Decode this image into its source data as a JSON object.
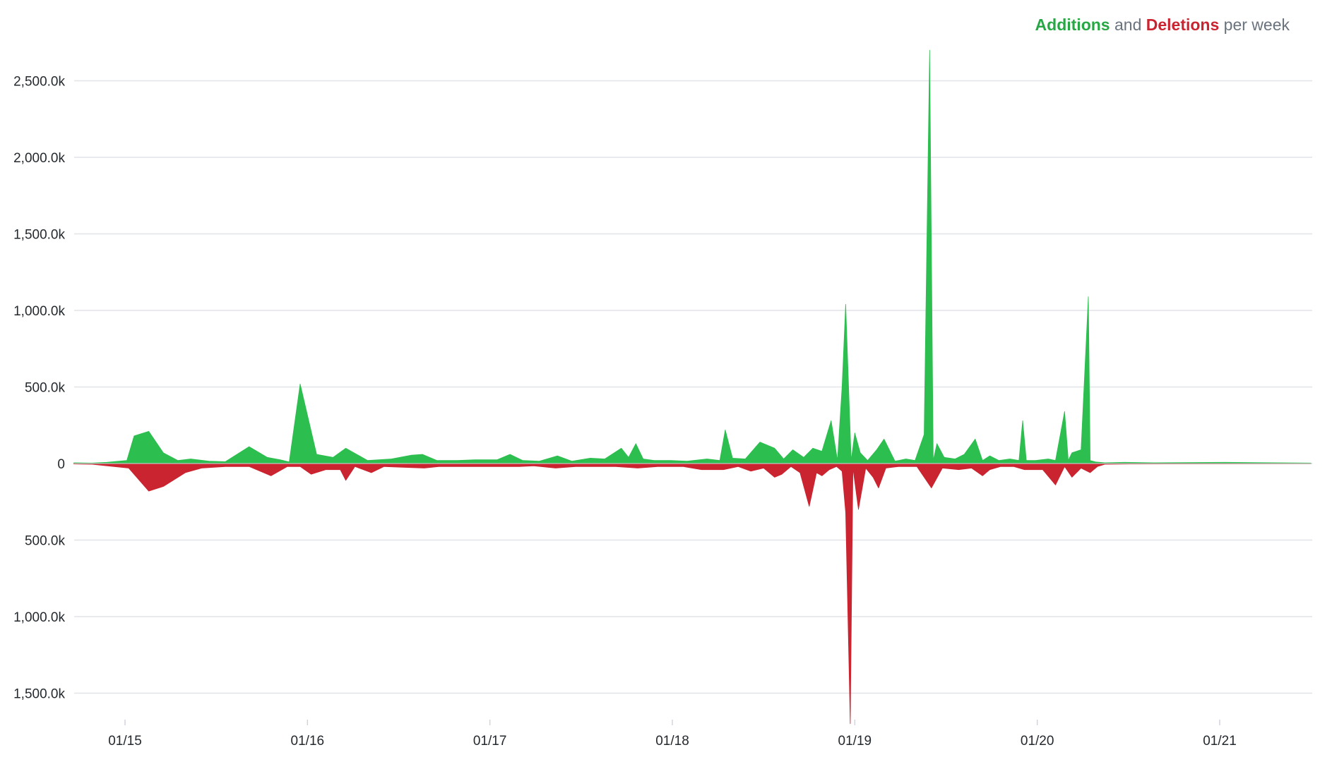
{
  "legend": {
    "additions": "Additions",
    "and": "and",
    "deletions": "Deletions",
    "suffix": "per week"
  },
  "colors": {
    "additions": "#2cbe4e",
    "deletions": "#cb2431",
    "grid": "#e1e4e8",
    "text": "#24292e"
  },
  "chart_data": {
    "type": "area",
    "title": "",
    "xlabel": "",
    "ylabel": "",
    "ylim": [
      -1700,
      2700
    ],
    "y_unit_label_suffix": "k",
    "y_ticks": [
      2500,
      2000,
      1500,
      1000,
      500,
      0,
      -500,
      -1000,
      -1500
    ],
    "y_tick_labels": [
      "2,500.0k",
      "2,000.0k",
      "1,500.0k",
      "1,000.0k",
      "500.0k",
      "0",
      "500.0k",
      "1,000.0k",
      "1,500.0k"
    ],
    "x_ticks": [
      "01/15",
      "01/16",
      "01/17",
      "01/18",
      "01/19",
      "01/20",
      "01/21"
    ],
    "grid": true,
    "legend_position": "top-right",
    "series": [
      {
        "name": "Additions",
        "x": [
          14.72,
          14.82,
          14.9,
          15.01,
          15.05,
          15.13,
          15.21,
          15.29,
          15.36,
          15.46,
          15.55,
          15.68,
          15.78,
          15.85,
          15.9,
          15.96,
          16.05,
          16.14,
          16.21,
          16.33,
          16.46,
          16.57,
          16.63,
          16.71,
          16.82,
          16.92,
          17.04,
          17.11,
          17.18,
          17.27,
          17.37,
          17.45,
          17.55,
          17.63,
          17.72,
          17.76,
          17.8,
          17.84,
          17.9,
          17.99,
          18.08,
          18.19,
          18.26,
          18.29,
          18.33,
          18.4,
          18.48,
          18.56,
          18.61,
          18.66,
          18.72,
          18.77,
          18.82,
          18.87,
          18.905,
          18.93,
          18.95,
          18.98,
          19.0,
          19.03,
          19.07,
          19.12,
          19.16,
          19.22,
          19.28,
          19.33,
          19.38,
          19.41,
          19.43,
          19.45,
          19.49,
          19.55,
          19.6,
          19.66,
          19.7,
          19.74,
          19.79,
          19.85,
          19.9,
          19.92,
          19.94,
          19.99,
          20.06,
          20.1,
          20.15,
          20.17,
          20.19,
          20.24,
          20.28,
          20.29,
          20.32,
          20.37,
          20.48,
          20.64,
          21.03,
          21.5
        ],
        "values": [
          5,
          3,
          8,
          20,
          180,
          210,
          70,
          20,
          30,
          15,
          12,
          110,
          40,
          25,
          10,
          520,
          60,
          40,
          100,
          20,
          30,
          55,
          60,
          20,
          20,
          25,
          25,
          60,
          20,
          15,
          50,
          15,
          35,
          30,
          100,
          40,
          130,
          30,
          20,
          20,
          15,
          30,
          20,
          220,
          35,
          30,
          140,
          100,
          30,
          90,
          40,
          100,
          80,
          280,
          20,
          500,
          1040,
          20,
          200,
          70,
          20,
          90,
          160,
          15,
          30,
          20,
          190,
          2700,
          20,
          130,
          40,
          30,
          60,
          160,
          20,
          50,
          20,
          30,
          20,
          280,
          20,
          20,
          30,
          20,
          340,
          20,
          70,
          90,
          1090,
          20,
          10,
          5,
          8,
          5,
          8,
          3
        ]
      },
      {
        "name": "Deletions",
        "x": [
          14.72,
          14.82,
          15.02,
          15.13,
          15.21,
          15.33,
          15.42,
          15.55,
          15.68,
          15.8,
          15.89,
          15.96,
          16.02,
          16.1,
          16.18,
          16.21,
          16.26,
          16.35,
          16.42,
          16.52,
          16.64,
          16.72,
          16.82,
          16.96,
          17.06,
          17.16,
          17.24,
          17.36,
          17.47,
          17.57,
          17.69,
          17.81,
          17.92,
          18.06,
          18.16,
          18.28,
          18.36,
          18.43,
          18.5,
          18.56,
          18.6,
          18.65,
          18.7,
          18.75,
          18.79,
          18.82,
          18.86,
          18.9,
          18.93,
          18.95,
          18.975,
          18.99,
          19.02,
          19.06,
          19.1,
          19.13,
          19.17,
          19.24,
          19.34,
          19.42,
          19.48,
          19.57,
          19.64,
          19.7,
          19.74,
          19.8,
          19.87,
          19.93,
          20.03,
          20.1,
          20.15,
          20.19,
          20.24,
          20.29,
          20.33,
          20.37,
          20.5,
          21.5
        ],
        "values": [
          3,
          5,
          30,
          180,
          150,
          60,
          30,
          20,
          20,
          80,
          20,
          20,
          70,
          40,
          40,
          110,
          20,
          60,
          20,
          25,
          30,
          20,
          20,
          20,
          20,
          20,
          15,
          30,
          20,
          20,
          20,
          30,
          20,
          20,
          40,
          40,
          20,
          50,
          30,
          90,
          70,
          20,
          60,
          280,
          60,
          80,
          40,
          20,
          50,
          320,
          1700,
          30,
          300,
          30,
          90,
          160,
          30,
          20,
          20,
          160,
          30,
          40,
          30,
          80,
          40,
          20,
          20,
          40,
          40,
          140,
          20,
          90,
          30,
          60,
          20,
          5,
          3,
          2
        ]
      }
    ]
  }
}
